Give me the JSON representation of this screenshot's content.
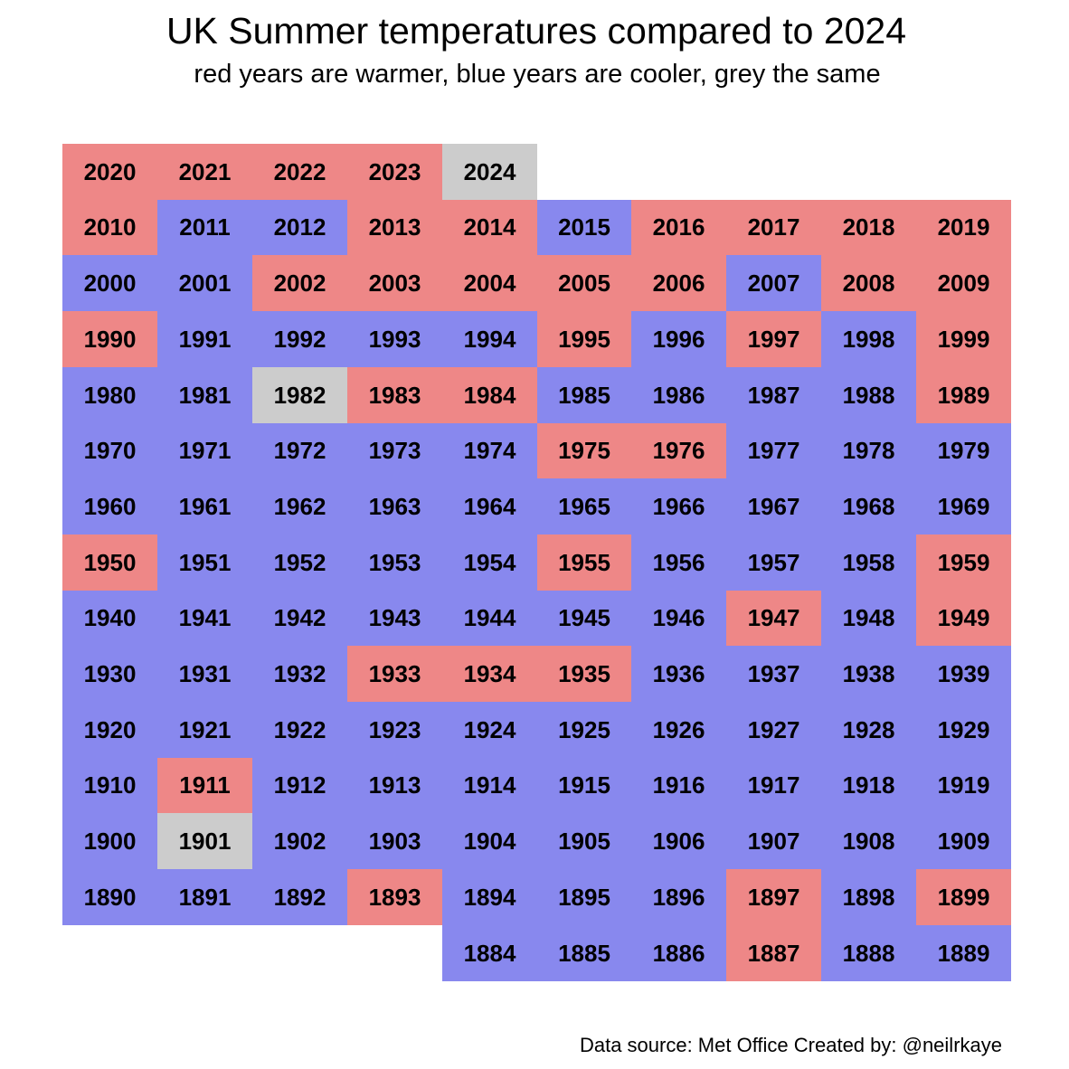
{
  "chart_data": {
    "type": "heatmap",
    "title": "UK Summer temperatures compared to 2024",
    "subtitle": "red years are warmer, blue years are cooler, grey the same",
    "reference_year": 2024,
    "rows": [
      {
        "decade": "2020s",
        "years": [
          2020,
          2021,
          2022,
          2023,
          2024
        ],
        "categories": [
          "warmer",
          "warmer",
          "warmer",
          "warmer",
          "same"
        ]
      },
      {
        "decade": "2010s",
        "years": [
          2010,
          2011,
          2012,
          2013,
          2014,
          2015,
          2016,
          2017,
          2018,
          2019
        ],
        "categories": [
          "warmer",
          "cooler",
          "cooler",
          "warmer",
          "warmer",
          "cooler",
          "warmer",
          "warmer",
          "warmer",
          "warmer"
        ]
      },
      {
        "decade": "2000s",
        "years": [
          2000,
          2001,
          2002,
          2003,
          2004,
          2005,
          2006,
          2007,
          2008,
          2009
        ],
        "categories": [
          "cooler",
          "cooler",
          "warmer",
          "warmer",
          "warmer",
          "warmer",
          "warmer",
          "cooler",
          "warmer",
          "warmer"
        ]
      },
      {
        "decade": "1990s",
        "years": [
          1990,
          1991,
          1992,
          1993,
          1994,
          1995,
          1996,
          1997,
          1998,
          1999
        ],
        "categories": [
          "warmer",
          "cooler",
          "cooler",
          "cooler",
          "cooler",
          "warmer",
          "cooler",
          "warmer",
          "cooler",
          "warmer"
        ]
      },
      {
        "decade": "1980s",
        "years": [
          1980,
          1981,
          1982,
          1983,
          1984,
          1985,
          1986,
          1987,
          1988,
          1989
        ],
        "categories": [
          "cooler",
          "cooler",
          "same",
          "warmer",
          "warmer",
          "cooler",
          "cooler",
          "cooler",
          "cooler",
          "warmer"
        ]
      },
      {
        "decade": "1970s",
        "years": [
          1970,
          1971,
          1972,
          1973,
          1974,
          1975,
          1976,
          1977,
          1978,
          1979
        ],
        "categories": [
          "cooler",
          "cooler",
          "cooler",
          "cooler",
          "cooler",
          "warmer",
          "warmer",
          "cooler",
          "cooler",
          "cooler"
        ]
      },
      {
        "decade": "1960s",
        "years": [
          1960,
          1961,
          1962,
          1963,
          1964,
          1965,
          1966,
          1967,
          1968,
          1969
        ],
        "categories": [
          "cooler",
          "cooler",
          "cooler",
          "cooler",
          "cooler",
          "cooler",
          "cooler",
          "cooler",
          "cooler",
          "cooler"
        ]
      },
      {
        "decade": "1950s",
        "years": [
          1950,
          1951,
          1952,
          1953,
          1954,
          1955,
          1956,
          1957,
          1958,
          1959
        ],
        "categories": [
          "warmer",
          "cooler",
          "cooler",
          "cooler",
          "cooler",
          "warmer",
          "cooler",
          "cooler",
          "cooler",
          "warmer"
        ]
      },
      {
        "decade": "1940s",
        "years": [
          1940,
          1941,
          1942,
          1943,
          1944,
          1945,
          1946,
          1947,
          1948,
          1949
        ],
        "categories": [
          "cooler",
          "cooler",
          "cooler",
          "cooler",
          "cooler",
          "cooler",
          "cooler",
          "warmer",
          "cooler",
          "warmer"
        ]
      },
      {
        "decade": "1930s",
        "years": [
          1930,
          1931,
          1932,
          1933,
          1934,
          1935,
          1936,
          1937,
          1938,
          1939
        ],
        "categories": [
          "cooler",
          "cooler",
          "cooler",
          "warmer",
          "warmer",
          "warmer",
          "cooler",
          "cooler",
          "cooler",
          "cooler"
        ]
      },
      {
        "decade": "1920s",
        "years": [
          1920,
          1921,
          1922,
          1923,
          1924,
          1925,
          1926,
          1927,
          1928,
          1929
        ],
        "categories": [
          "cooler",
          "cooler",
          "cooler",
          "cooler",
          "cooler",
          "cooler",
          "cooler",
          "cooler",
          "cooler",
          "cooler"
        ]
      },
      {
        "decade": "1910s",
        "years": [
          1910,
          1911,
          1912,
          1913,
          1914,
          1915,
          1916,
          1917,
          1918,
          1919
        ],
        "categories": [
          "cooler",
          "warmer",
          "cooler",
          "cooler",
          "cooler",
          "cooler",
          "cooler",
          "cooler",
          "cooler",
          "cooler"
        ]
      },
      {
        "decade": "1900s",
        "years": [
          1900,
          1901,
          1902,
          1903,
          1904,
          1905,
          1906,
          1907,
          1908,
          1909
        ],
        "categories": [
          "cooler",
          "same",
          "cooler",
          "cooler",
          "cooler",
          "cooler",
          "cooler",
          "cooler",
          "cooler",
          "cooler"
        ]
      },
      {
        "decade": "1890s",
        "years": [
          1890,
          1891,
          1892,
          1893,
          1894,
          1895,
          1896,
          1897,
          1898,
          1899
        ],
        "categories": [
          "cooler",
          "cooler",
          "cooler",
          "warmer",
          "cooler",
          "cooler",
          "cooler",
          "warmer",
          "cooler",
          "warmer"
        ]
      },
      {
        "decade": "1880s",
        "years": [
          1884,
          1885,
          1886,
          1887,
          1888,
          1889
        ],
        "categories": [
          "cooler",
          "cooler",
          "cooler",
          "warmer",
          "cooler",
          "cooler"
        ]
      }
    ],
    "colors": {
      "warmer": "#ee8787",
      "cooler": "#8888ee",
      "same": "#cccccc"
    },
    "legend": "none"
  },
  "footer": {
    "source_note": "Data source: Met Office   Created by: @neilrkaye"
  }
}
